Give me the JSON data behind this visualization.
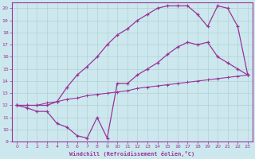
{
  "bg_color": "#cce8ee",
  "grid_color": "#aacccc",
  "line_color": "#993399",
  "xlim": [
    -0.5,
    23.5
  ],
  "ylim": [
    9,
    20.5
  ],
  "xticks": [
    0,
    1,
    2,
    3,
    4,
    5,
    6,
    7,
    8,
    9,
    10,
    11,
    12,
    13,
    14,
    15,
    16,
    17,
    18,
    19,
    20,
    21,
    22,
    23
  ],
  "yticks": [
    9,
    10,
    11,
    12,
    13,
    14,
    15,
    16,
    17,
    18,
    19,
    20
  ],
  "xlabel": "Windchill (Refroidissement éolien,°C)",
  "curve_top_x": [
    0,
    1,
    2,
    3,
    4,
    5,
    6,
    7,
    8,
    9,
    10,
    11,
    12,
    13,
    14,
    15,
    16,
    17,
    18,
    19,
    20,
    21,
    22,
    23
  ],
  "curve_top_y": [
    12,
    12.0,
    12.0,
    12.0,
    12.3,
    13.5,
    14.5,
    15.2,
    16.0,
    17.0,
    17.8,
    18.3,
    19.0,
    19.5,
    20.0,
    20.2,
    20.2,
    20.2,
    19.5,
    18.5,
    20.2,
    20.0,
    18.5,
    14.5
  ],
  "curve_mid_x": [
    0,
    1,
    2,
    3,
    4,
    5,
    6,
    7,
    8,
    9,
    10,
    11,
    12,
    13,
    14,
    15,
    16,
    17,
    18,
    19,
    20,
    21,
    22,
    23
  ],
  "curve_mid_y": [
    12,
    11.8,
    11.5,
    11.5,
    10.5,
    10.2,
    9.5,
    9.3,
    11.0,
    9.3,
    13.8,
    13.8,
    14.5,
    15.0,
    15.5,
    16.2,
    16.8,
    17.2,
    17.0,
    17.2,
    16.0,
    15.5,
    15.0,
    14.5
  ],
  "curve_low_x": [
    0,
    1,
    2,
    3,
    4,
    5,
    6,
    7,
    8,
    9,
    10,
    11,
    12,
    13,
    14,
    15,
    16,
    17,
    18,
    19,
    20,
    21,
    22,
    23
  ],
  "curve_low_y": [
    12,
    12.0,
    12.0,
    12.2,
    12.3,
    12.5,
    12.6,
    12.8,
    12.9,
    13.0,
    13.1,
    13.2,
    13.4,
    13.5,
    13.6,
    13.7,
    13.8,
    13.9,
    14.0,
    14.1,
    14.2,
    14.3,
    14.4,
    14.5
  ]
}
